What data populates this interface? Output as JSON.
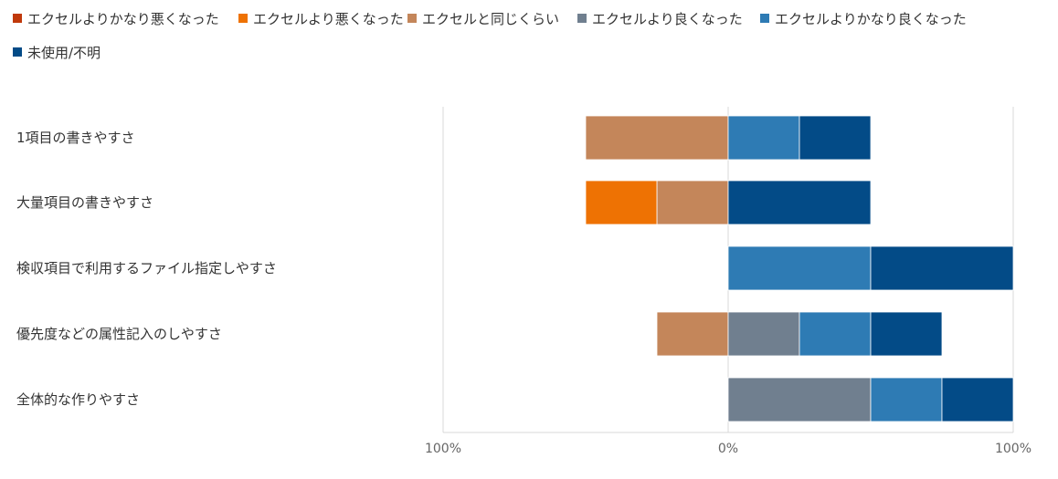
{
  "chart_data": {
    "type": "bar",
    "orientation": "horizontal-diverging-stacked",
    "categories": [
      "1項目の書きやすさ",
      "大量項目の書きやすさ",
      "検収項目で利用するファイル指定しやすさ",
      "優先度などの属性記入のしやすさ",
      "全体的な作りやすさ"
    ],
    "series": [
      {
        "name": "エクセルよりかなり悪くなった",
        "color": "#C0390B",
        "side": "negative",
        "values": [
          0,
          0,
          0,
          0,
          0
        ]
      },
      {
        "name": "エクセルより悪くなった",
        "color": "#EE7203",
        "side": "negative",
        "values": [
          0,
          25,
          0,
          0,
          0
        ]
      },
      {
        "name": "エクセルと同じくらい",
        "color": "#C4865A",
        "side": "negative",
        "values": [
          50,
          25,
          0,
          25,
          0
        ]
      },
      {
        "name": "エクセルより良くなった",
        "color": "#707F8F",
        "side": "positive",
        "values": [
          0,
          0,
          0,
          25,
          50
        ]
      },
      {
        "name": "エクセルよりかなり良くなった",
        "color": "#2E7BB4",
        "side": "positive",
        "values": [
          25,
          0,
          50,
          25,
          25
        ]
      },
      {
        "name": "未使用/不明",
        "color": "#034B87",
        "side": "positive",
        "values": [
          25,
          50,
          50,
          25,
          25
        ]
      }
    ],
    "xlim": [
      -100,
      100
    ],
    "x_tick_labels": [
      "100%",
      "0%",
      "100%"
    ],
    "x_tick_values": [
      -100,
      0,
      100
    ],
    "legend_position": "top",
    "grid": false
  }
}
